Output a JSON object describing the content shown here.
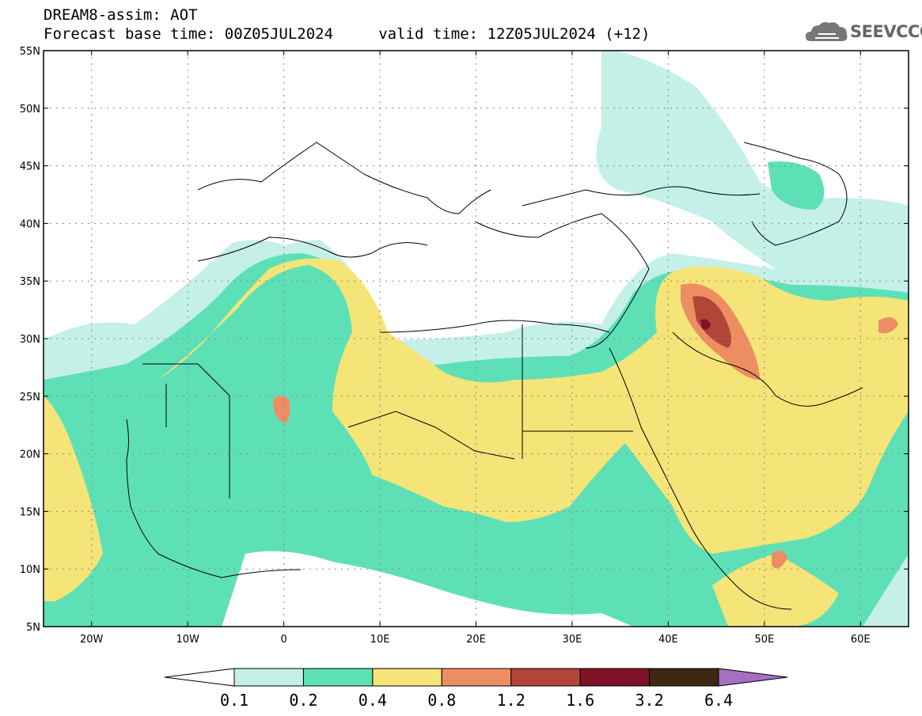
{
  "header": {
    "line1": "DREAM8-assim: AOT",
    "line2": "Forecast base time: 00Z05JUL2024     valid time: 12Z05JUL2024 (+12)"
  },
  "logo": {
    "text": "SEEVCCC",
    "icon": "cloud-icon",
    "color": "#666666"
  },
  "map": {
    "lat_labels": [
      "55N",
      "50N",
      "45N",
      "40N",
      "35N",
      "30N",
      "25N",
      "20N",
      "15N",
      "10N",
      "5N"
    ],
    "lon_labels": [
      "20W",
      "10W",
      "0",
      "10E",
      "20E",
      "30E",
      "40E",
      "50E",
      "60E"
    ],
    "lon_range": [
      -25,
      65
    ],
    "lat_range": [
      5,
      55
    ],
    "grid": "dotted"
  },
  "colorbar": {
    "levels": [
      "0.1",
      "0.2",
      "0.4",
      "0.8",
      "1.2",
      "1.6",
      "3.2",
      "6.4"
    ],
    "colors": [
      "#c4f0e8",
      "#5ee0b7",
      "#f5e478",
      "#ec8e62",
      "#b04538",
      "#7e1228",
      "#3d2813",
      "#a56fc2"
    ]
  }
}
